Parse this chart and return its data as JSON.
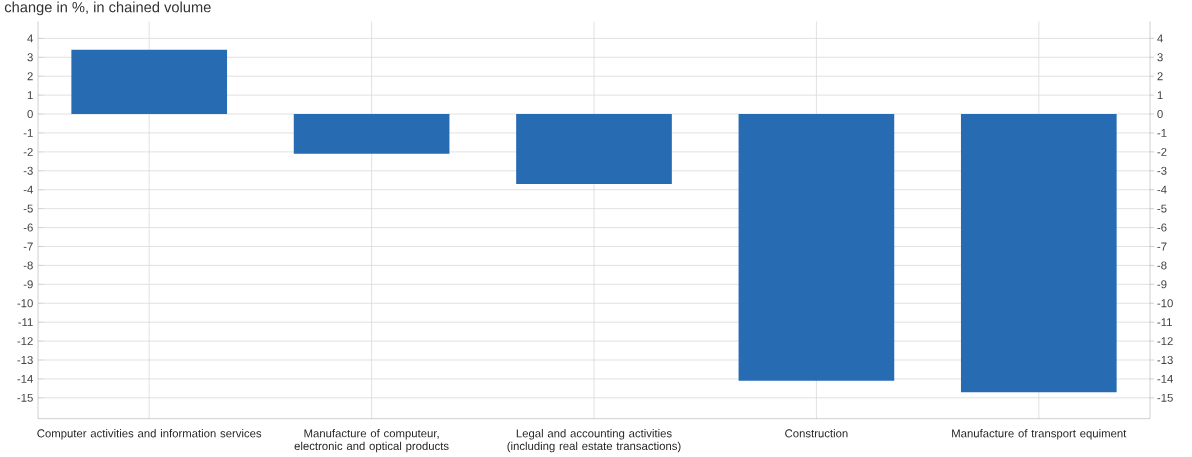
{
  "chart_data": {
    "type": "bar",
    "title": "change in %, in chained volume",
    "categories": [
      "Computer activities and information services",
      "Manufacture of computeur, electronic and optical products",
      "Legal and accounting activities (including real estate transactions)",
      "Construction",
      "Manufacture of transport equiment"
    ],
    "values": [
      3.4,
      -2.1,
      -3.7,
      -14.1,
      -14.7
    ],
    "color": "#276bb3",
    "ylim": [
      -16.1,
      4.9
    ],
    "yticks": [
      -15,
      -14,
      -13,
      -12,
      -11,
      -10,
      -9,
      -8,
      -7,
      -6,
      -5,
      -4,
      -3,
      -2,
      -1,
      0,
      1,
      2,
      3,
      4
    ],
    "y2lim": [
      -16.1,
      4.9
    ],
    "y2ticks": [
      -15,
      -14,
      -13,
      -12,
      -11,
      -10,
      -9,
      -8,
      -7,
      -6,
      -5,
      -4,
      -3,
      -2,
      -1,
      0,
      1,
      2,
      3,
      4
    ],
    "grid": true
  }
}
